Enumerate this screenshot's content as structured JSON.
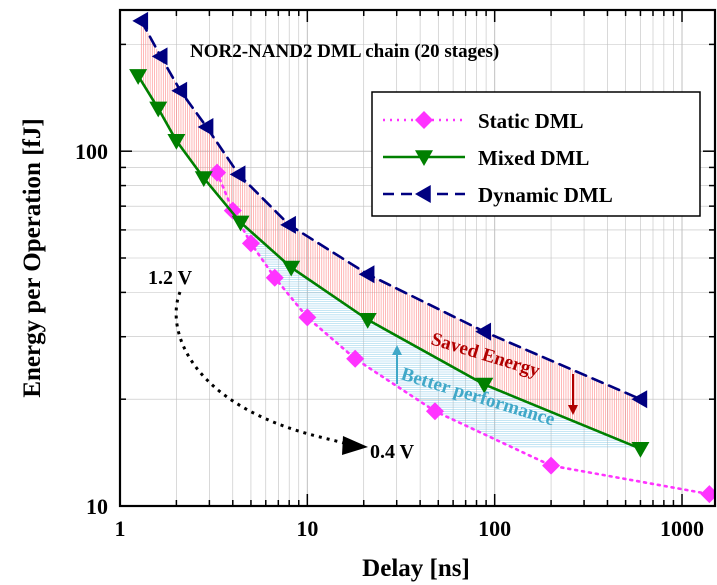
{
  "chart_data": {
    "type": "line",
    "title": "NOR2-NAND2 DML chain (20 stages)",
    "xlabel": "Delay [ns]",
    "ylabel": "Energy per Operation [fJ]",
    "x_scale": "log",
    "y_scale": "log",
    "xlim": [
      1,
      1500
    ],
    "ylim": [
      10,
      250
    ],
    "x_ticks": [
      1,
      10,
      100,
      1000
    ],
    "x_tick_labels": [
      "1",
      "10",
      "100",
      "1000"
    ],
    "y_ticks": [
      10,
      100
    ],
    "y_tick_labels": [
      "10",
      "100"
    ],
    "grid": true,
    "legend_position": "top-right",
    "series": [
      {
        "name": "Static DML",
        "color": "#ff33ff",
        "line_style": "dotted",
        "marker": "diamond",
        "x": [
          3.3,
          4.0,
          5.0,
          6.7,
          10.0,
          18.0,
          48.0,
          200.0,
          1400.0
        ],
        "y": [
          87,
          68,
          55,
          44,
          34,
          26,
          18.5,
          13,
          10.8
        ]
      },
      {
        "name": "Mixed DML",
        "color": "#008000",
        "line_style": "solid",
        "marker": "triangle-down",
        "x": [
          1.25,
          1.6,
          2.0,
          2.8,
          4.4,
          8.2,
          21.0,
          88.0,
          600.0
        ],
        "y": [
          163,
          132,
          107,
          84,
          63,
          47,
          33.5,
          22,
          14.5
        ]
      },
      {
        "name": "Dynamic DML",
        "color": "#000080",
        "line_style": "dashed",
        "marker": "triangle-left",
        "x": [
          1.3,
          1.65,
          2.1,
          2.9,
          4.3,
          8.0,
          21.0,
          88.0,
          600.0
        ],
        "y": [
          233,
          185,
          148,
          117,
          86,
          62,
          45,
          31,
          20
        ]
      }
    ],
    "annotations": {
      "voltage_high": "1.2 V",
      "voltage_low": "0.4 V",
      "saved_energy": "Saved Energy",
      "better_performance": "Better performance"
    },
    "colors": {
      "saved_energy": "#b00000",
      "better_performance": "#40a8c8",
      "hatch_red": "#ff8080",
      "hatch_blue": "#80c8e8"
    }
  }
}
